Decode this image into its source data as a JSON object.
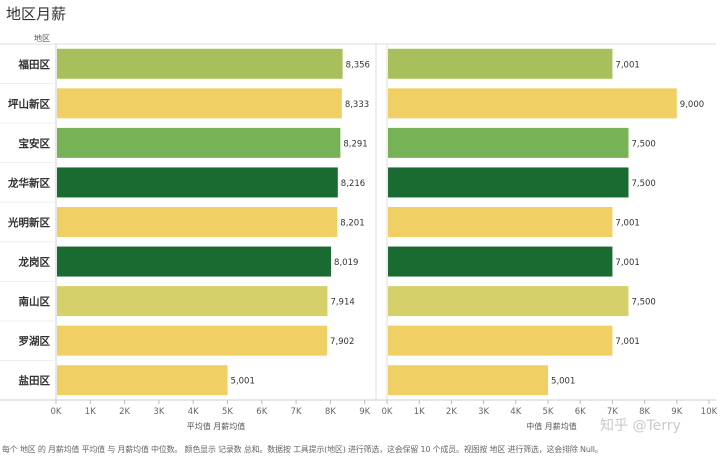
{
  "title": "地区月薪",
  "row_header": "地区",
  "footnote": "每个 地区 的 月薪均值 平均值 与 月薪均值 中位数。 颜色显示 记录数 总和。数据按 工具提示(地区) 进行筛选，这会保留 10 个成员。视图按 地区 进行筛选，这会排除 Null。",
  "watermark": "知乎 @Terry",
  "colors": {
    "dark_green": "#1a6b32",
    "green": "#77b356",
    "olive": "#a8c05c",
    "khaki": "#d6d06a",
    "yellow": "#f0d064"
  },
  "chart_data": {
    "type": "bar",
    "orientation": "horizontal",
    "categories": [
      "福田区",
      "坪山新区",
      "宝安区",
      "龙华新区",
      "光明新区",
      "龙岗区",
      "南山区",
      "罗湖区",
      "盐田区"
    ],
    "bar_colors": [
      "#a8c05c",
      "#f0d064",
      "#77b356",
      "#1a6b32",
      "#f0d064",
      "#1a6b32",
      "#d6d06a",
      "#f0d064",
      "#f0d064"
    ],
    "panels": [
      {
        "name": "平均值 月薪均值",
        "xlabel": "平均值 月薪均值",
        "values": [
          8356,
          8333,
          8291,
          8216,
          8201,
          8019,
          7914,
          7902,
          5001
        ],
        "labels": [
          "8,356",
          "8,333",
          "8,291",
          "8,216",
          "8,201",
          "8,019",
          "7,914",
          "7,902",
          "5,001"
        ],
        "xlim": [
          0,
          9000
        ],
        "ticks": [
          "0K",
          "1K",
          "2K",
          "3K",
          "4K",
          "5K",
          "6K",
          "7K",
          "8K",
          "9K"
        ]
      },
      {
        "name": "中值 月薪均值",
        "xlabel": "中值 月薪均值",
        "values": [
          7001,
          9000,
          7500,
          7500,
          7001,
          7001,
          7500,
          7001,
          5001
        ],
        "labels": [
          "7,001",
          "9,000",
          "7,500",
          "7,500",
          "7,001",
          "7,001",
          "7,500",
          "7,001",
          "5,001"
        ],
        "xlim": [
          0,
          10000
        ],
        "ticks": [
          "0K",
          "1K",
          "2K",
          "3K",
          "4K",
          "5K",
          "6K",
          "7K",
          "8K",
          "9K",
          "10K"
        ]
      }
    ],
    "grid": false
  }
}
